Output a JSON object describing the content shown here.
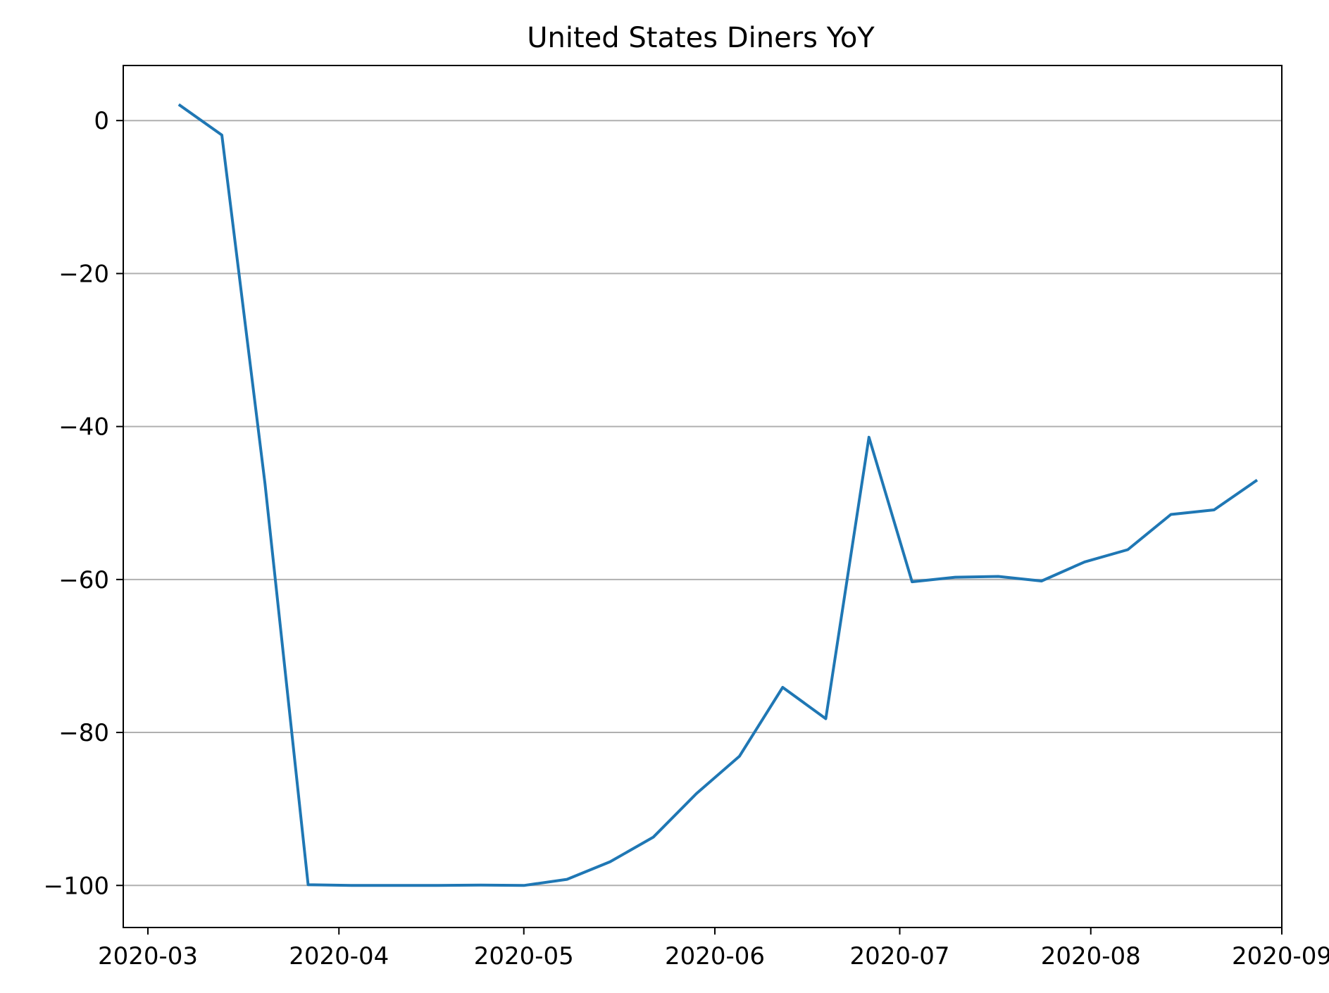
{
  "chart_data": {
    "type": "line",
    "title": "United States Diners YoY",
    "xlabel": "",
    "ylabel": "",
    "x_type": "date",
    "xlim": [
      "2020-02-26",
      "2020-09-01"
    ],
    "ylim": [
      -105.5,
      7.2
    ],
    "grid": {
      "x": false,
      "y": true
    },
    "legend": "none",
    "x_ticks": [
      {
        "value": "2020-03-01",
        "label": "2020-03"
      },
      {
        "value": "2020-04-01",
        "label": "2020-04"
      },
      {
        "value": "2020-05-01",
        "label": "2020-05"
      },
      {
        "value": "2020-06-01",
        "label": "2020-06"
      },
      {
        "value": "2020-07-01",
        "label": "2020-07"
      },
      {
        "value": "2020-08-01",
        "label": "2020-08"
      },
      {
        "value": "2020-09-01",
        "label": "2020-09"
      }
    ],
    "y_ticks": [
      {
        "value": 0,
        "label": "0"
      },
      {
        "value": -20,
        "label": "−20"
      },
      {
        "value": -40,
        "label": "−40"
      },
      {
        "value": -60,
        "label": "−60"
      },
      {
        "value": -80,
        "label": "−80"
      },
      {
        "value": -100,
        "label": "−100"
      }
    ],
    "series": [
      {
        "color": "#1f77b4",
        "points": [
          {
            "x": "2020-03-06",
            "y": 2.1
          },
          {
            "x": "2020-03-13",
            "y": -1.9
          },
          {
            "x": "2020-03-20",
            "y": -47.5
          },
          {
            "x": "2020-03-27",
            "y": -99.9
          },
          {
            "x": "2020-04-03",
            "y": -100.0
          },
          {
            "x": "2020-04-10",
            "y": -100.0
          },
          {
            "x": "2020-04-17",
            "y": -100.0
          },
          {
            "x": "2020-04-24",
            "y": -99.95
          },
          {
            "x": "2020-05-01",
            "y": -100.0
          },
          {
            "x": "2020-05-08",
            "y": -99.2
          },
          {
            "x": "2020-05-15",
            "y": -96.9
          },
          {
            "x": "2020-05-22",
            "y": -93.7
          },
          {
            "x": "2020-05-29",
            "y": -88.0
          },
          {
            "x": "2020-06-05",
            "y": -83.1
          },
          {
            "x": "2020-06-12",
            "y": -74.1
          },
          {
            "x": "2020-06-19",
            "y": -78.2
          },
          {
            "x": "2020-06-26",
            "y": -41.4
          },
          {
            "x": "2020-07-03",
            "y": -60.3
          },
          {
            "x": "2020-07-10",
            "y": -59.7
          },
          {
            "x": "2020-07-17",
            "y": -59.6
          },
          {
            "x": "2020-07-24",
            "y": -60.2
          },
          {
            "x": "2020-07-31",
            "y": -57.7
          },
          {
            "x": "2020-08-07",
            "y": -56.1
          },
          {
            "x": "2020-08-14",
            "y": -51.5
          },
          {
            "x": "2020-08-21",
            "y": -50.9
          },
          {
            "x": "2020-08-28",
            "y": -47.0
          }
        ]
      }
    ]
  }
}
